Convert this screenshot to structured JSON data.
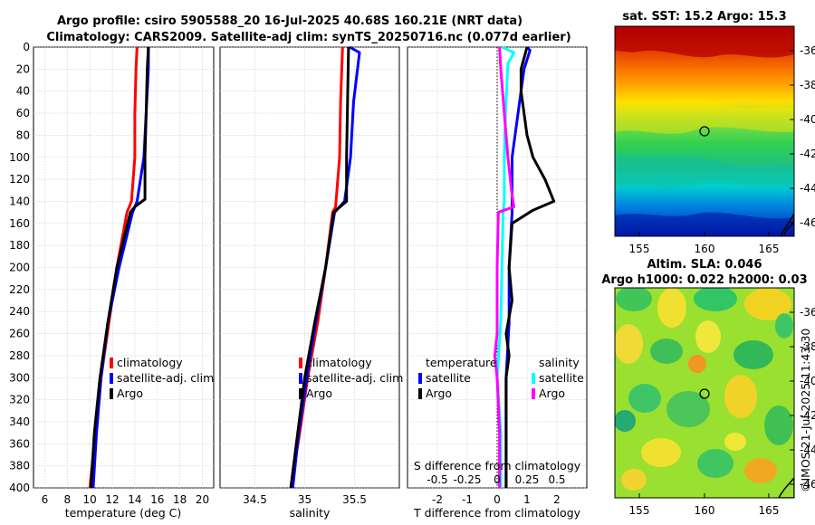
{
  "title": {
    "line1": "Argo profile: csiro 5905588_20 16-Jul-2025 40.68S 160.21E (NRT data)",
    "line2": "Climatology: CARS2009. Satellite-adj clim: synTS_20250716.nc (0.077d earlier)"
  },
  "colors": {
    "climatology": "#ff0000",
    "satellite": "#0000ff",
    "argo": "#000000",
    "salinity_satellite": "#00ffff",
    "salinity_argo": "#ff00ff"
  },
  "depth_ticks": [
    0,
    20,
    40,
    60,
    80,
    100,
    120,
    140,
    160,
    180,
    200,
    220,
    240,
    260,
    280,
    300,
    320,
    340,
    360,
    380,
    400
  ],
  "chart_data": [
    {
      "type": "line",
      "id": "temperature",
      "xlabel": "temperature (deg C)",
      "ylabel": "",
      "xlim": [
        5,
        21
      ],
      "ylim": [
        400,
        0
      ],
      "x_ticks": [
        "6",
        "8",
        "10",
        "12",
        "14",
        "16",
        "18",
        "20"
      ],
      "x_tick_values": [
        6,
        8,
        10,
        12,
        14,
        16,
        18,
        20
      ],
      "legend": [
        "climatology",
        "satellite-adj. clim",
        "Argo"
      ],
      "series": [
        {
          "name": "climatology",
          "depth": [
            0,
            20,
            60,
            100,
            140,
            150,
            200,
            250,
            300,
            350,
            400
          ],
          "values": [
            14.2,
            14.1,
            14.0,
            14.0,
            13.7,
            13.3,
            12.4,
            11.7,
            11.0,
            10.5,
            10.0
          ]
        },
        {
          "name": "satellite-adj. clim",
          "depth": [
            0,
            20,
            60,
            100,
            140,
            150,
            200,
            250,
            300,
            350,
            400
          ],
          "values": [
            15.2,
            15.2,
            15.0,
            14.8,
            14.2,
            13.8,
            12.6,
            11.6,
            11.0,
            10.6,
            10.3
          ]
        },
        {
          "name": "Argo",
          "depth": [
            0,
            20,
            60,
            100,
            138,
            145,
            150,
            200,
            250,
            300,
            350,
            400
          ],
          "values": [
            15.2,
            15.1,
            15.0,
            14.9,
            14.9,
            14.0,
            13.6,
            12.4,
            11.6,
            10.9,
            10.4,
            10.1
          ]
        }
      ]
    },
    {
      "type": "line",
      "id": "salinity",
      "xlabel": "salinity",
      "ylabel": "",
      "xlim": [
        34.15,
        35.95
      ],
      "ylim": [
        400,
        0
      ],
      "x_ticks": [
        "34.5",
        "35",
        "35.5"
      ],
      "x_tick_values": [
        34.5,
        35,
        35.5
      ],
      "legend": [
        "climatology",
        "satellite-adj. clim",
        "Argo"
      ],
      "series": [
        {
          "name": "climatology",
          "depth": [
            0,
            50,
            100,
            145,
            150,
            200,
            250,
            300,
            350,
            400
          ],
          "values": [
            35.38,
            35.36,
            35.35,
            35.31,
            35.28,
            35.21,
            35.13,
            35.03,
            34.95,
            34.86
          ]
        },
        {
          "name": "satellite-adj. clim",
          "depth": [
            0,
            5,
            50,
            100,
            140,
            150,
            200,
            250,
            300,
            350,
            400
          ],
          "values": [
            35.45,
            35.55,
            35.49,
            35.46,
            35.4,
            35.3,
            35.21,
            35.11,
            35.02,
            34.94,
            34.88
          ]
        },
        {
          "name": "Argo",
          "depth": [
            0,
            50,
            100,
            140,
            150,
            200,
            250,
            300,
            350,
            400
          ],
          "values": [
            35.44,
            35.43,
            35.42,
            35.42,
            35.29,
            35.21,
            35.1,
            35.0,
            34.93,
            34.86
          ]
        }
      ]
    },
    {
      "type": "line",
      "id": "difference",
      "xlabel": "T difference from climatology",
      "top_label": "S difference from climatology",
      "xlim": [
        -3,
        3
      ],
      "ylim": [
        400,
        0
      ],
      "x_ticks": [
        "-2",
        "-1",
        "0",
        "1",
        "2"
      ],
      "x_tick_values": [
        -2,
        -1,
        0,
        1,
        2
      ],
      "top_ticks": [
        "-0.5",
        "-0.25",
        "0",
        "0.25",
        "0.5"
      ],
      "top_tick_values": [
        -0.5,
        -0.25,
        0,
        0.25,
        0.5
      ],
      "legend_temperature": [
        "temperature",
        "satellite",
        "Argo"
      ],
      "legend_salinity": [
        "salinity",
        "satellite",
        "Argo"
      ],
      "series": [
        {
          "name": "temperature satellite",
          "quantity": "T",
          "depth": [
            0,
            3,
            20,
            60,
            100,
            140,
            150,
            200,
            250,
            300,
            350,
            400
          ],
          "values": [
            1.0,
            1.1,
            0.9,
            0.7,
            0.5,
            0.5,
            0.5,
            0.4,
            0.4,
            0.3,
            0.3,
            0.3
          ]
        },
        {
          "name": "temperature Argo",
          "quantity": "T",
          "depth": [
            0,
            20,
            40,
            80,
            100,
            120,
            140,
            148,
            160,
            200,
            230,
            260,
            280,
            300,
            340,
            400
          ],
          "values": [
            1.0,
            0.8,
            0.8,
            1.0,
            1.2,
            1.6,
            1.9,
            1.2,
            0.5,
            0.4,
            0.5,
            0.3,
            0.4,
            0.3,
            0.3,
            0.3
          ]
        },
        {
          "name": "salinity satellite",
          "quantity": "S",
          "depth": [
            0,
            5,
            15,
            60,
            100,
            140,
            150,
            200,
            250,
            300,
            350,
            400
          ],
          "values": [
            0.04,
            0.14,
            0.09,
            0.07,
            0.06,
            0.06,
            0.05,
            0.04,
            0.03,
            0.0,
            0.03,
            0.03
          ]
        },
        {
          "name": "salinity Argo",
          "quantity": "S",
          "depth": [
            0,
            20,
            60,
            100,
            130,
            145,
            150,
            200,
            260,
            280,
            300,
            350,
            400
          ],
          "values": [
            0.02,
            0.03,
            0.06,
            0.09,
            0.12,
            0.14,
            0.01,
            0.0,
            0.0,
            -0.02,
            0.0,
            0.02,
            0.02
          ]
        }
      ]
    }
  ],
  "maps": [
    {
      "title": "sat. SST: 15.2 Argo: 15.3",
      "x_ticks": [
        "155",
        "160",
        "165"
      ],
      "y_ticks": [
        "-36",
        "-38",
        "-40",
        "-42",
        "-44",
        "-46"
      ],
      "colormap": "jet",
      "marker": "Argo float location"
    },
    {
      "title_line1": "Altim. SLA: 0.046",
      "title_line2": "Argo h1000: 0.022 h2000: 0.03",
      "x_ticks": [
        "155",
        "160",
        "165"
      ],
      "y_ticks": [
        "-36",
        "-38",
        "-40",
        "-42",
        "-44",
        "-46"
      ],
      "colormap": "jet",
      "marker": "Argo float location"
    }
  ],
  "footer": "©IMOS 21-Jul-2025 11:43:30"
}
